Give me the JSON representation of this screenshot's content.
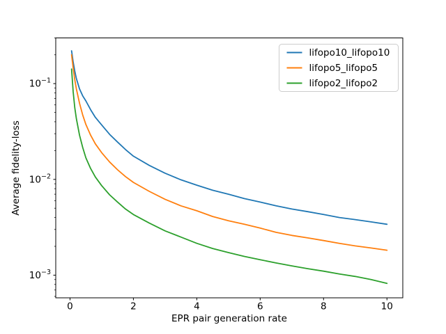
{
  "figure": {
    "background": "#ffffff",
    "spine_color": "#000000",
    "tick_color": "#000000"
  },
  "chart_data": {
    "type": "line",
    "title": "",
    "xlabel": "EPR pair generation rate",
    "ylabel": "Average fidelity-loss",
    "y_scale": "log",
    "grid": false,
    "legend_position": "upper right",
    "xlim": [
      -0.45,
      10.5
    ],
    "ylim": [
      0.00058,
      0.3
    ],
    "x_ticks": [
      {
        "value": 0,
        "label": "0"
      },
      {
        "value": 2,
        "label": "2"
      },
      {
        "value": 4,
        "label": "4"
      },
      {
        "value": 6,
        "label": "6"
      },
      {
        "value": 8,
        "label": "8"
      },
      {
        "value": 10,
        "label": "10"
      }
    ],
    "y_ticks": [
      {
        "value": 0.1,
        "base": "10",
        "exp": "−1"
      },
      {
        "value": 0.01,
        "base": "10",
        "exp": "−2"
      },
      {
        "value": 0.001,
        "base": "10",
        "exp": "−3"
      }
    ],
    "x": [
      0.05,
      0.1,
      0.15,
      0.2,
      0.3,
      0.4,
      0.5,
      0.65,
      0.8,
      1.0,
      1.25,
      1.5,
      1.75,
      2.0,
      2.5,
      3.0,
      3.5,
      4.0,
      4.5,
      5.0,
      5.5,
      6.0,
      6.5,
      7.0,
      7.5,
      8.0,
      8.5,
      9.0,
      9.5,
      10.0
    ],
    "series": [
      {
        "name": "lifopo10_lifopo10",
        "color": "#1f77b4",
        "values": [
          0.22,
          0.168,
          0.135,
          0.113,
          0.088,
          0.0745,
          0.066,
          0.0535,
          0.0445,
          0.037,
          0.0295,
          0.0245,
          0.0205,
          0.0175,
          0.014,
          0.0116,
          0.0099,
          0.0087,
          0.0077,
          0.007,
          0.0063,
          0.0058,
          0.0053,
          0.0049,
          0.0046,
          0.0043,
          0.004,
          0.0038,
          0.0036,
          0.0034
        ]
      },
      {
        "name": "lifopo5_lifopo5",
        "color": "#ff7f0e",
        "values": [
          0.2,
          0.146,
          0.11,
          0.088,
          0.0625,
          0.047,
          0.0375,
          0.029,
          0.0235,
          0.019,
          0.0152,
          0.0126,
          0.0107,
          0.0093,
          0.0075,
          0.0062,
          0.0053,
          0.0047,
          0.0041,
          0.0037,
          0.0034,
          0.0031,
          0.0028,
          0.0026,
          0.00245,
          0.0023,
          0.00215,
          0.00202,
          0.00192,
          0.00182
        ]
      },
      {
        "name": "lifopo2_lifopo2",
        "color": "#2ca02c",
        "values": [
          0.142,
          0.082,
          0.056,
          0.043,
          0.029,
          0.0215,
          0.0168,
          0.013,
          0.0106,
          0.0086,
          0.0069,
          0.0058,
          0.0049,
          0.0043,
          0.0035,
          0.0029,
          0.0025,
          0.00215,
          0.0019,
          0.00172,
          0.00157,
          0.00145,
          0.00134,
          0.00125,
          0.00117,
          0.0011,
          0.00103,
          0.00097,
          0.0009,
          0.00082
        ]
      }
    ]
  }
}
